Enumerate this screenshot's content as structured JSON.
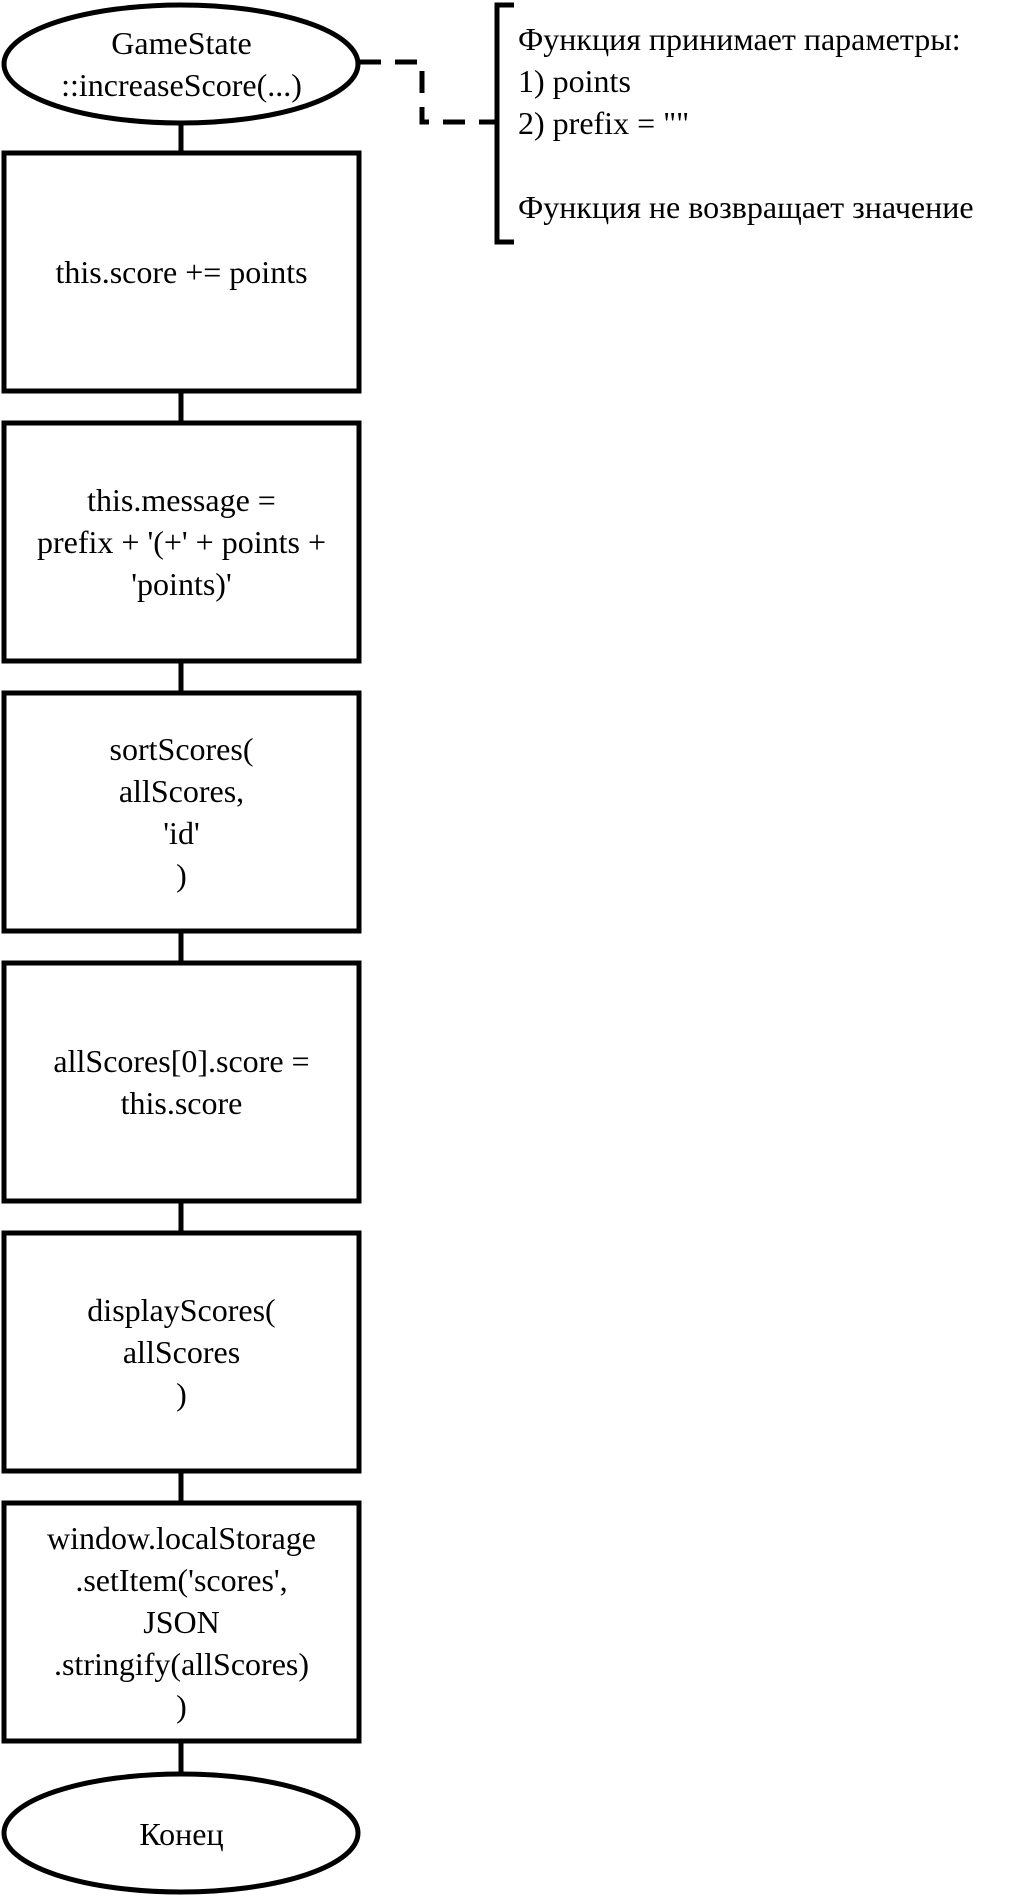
{
  "flowchart": {
    "start_label": "GameState\n::increaseScore(...)",
    "steps": [
      "this.score += points",
      "this.message =\nprefix + '(+' + points +\n'points)'",
      "sortScores(\nallScores,\n'id'\n)",
      "allScores[0].score =\nthis.score",
      "displayScores(\nallScores\n)",
      "window.localStorage\n.setItem('scores',\nJSON\n.stringify(allScores)\n)"
    ],
    "end_label": "Конец",
    "comment": "Функция принимает параметры:\n1) points\n2) prefix = \"\"\n\nФункция не возвращает значение"
  },
  "colors": {
    "stroke": "#000000",
    "fill": "#ffffff"
  }
}
